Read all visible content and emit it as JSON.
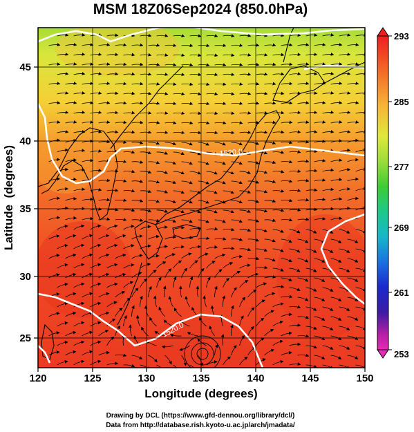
{
  "title": "MSM 18Z06Sep2024 (850.0hPa)",
  "x_axis": {
    "label": "Longitude (degrees)",
    "ticks": [
      "120",
      "125",
      "130",
      "135",
      "140",
      "145",
      "150"
    ]
  },
  "y_axis": {
    "label": "Latitude  (degrees)",
    "ticks": [
      "25",
      "30",
      "35",
      "40",
      "45"
    ]
  },
  "colorbar": {
    "min": 253,
    "max": 293,
    "ticks": [
      "293",
      "285",
      "277",
      "269",
      "261",
      "253"
    ],
    "colors": [
      "#ee1f23",
      "#f27027",
      "#f7b338",
      "#e0e83c",
      "#9bdd3a",
      "#3ecb35",
      "#1fc88a",
      "#18b6c9",
      "#1a72e0",
      "#1b2acb",
      "#3b1ca3",
      "#b41ea5",
      "#e62bb4"
    ]
  },
  "contour_labels": [
    "1520.0",
    "1520.0"
  ],
  "credits": [
    "Drawing by DCL (https://www.gfd-dennou.org/library/dcl/)",
    "Data from http://database.rish.kyoto-u.ac.jp/arch/jmadata/"
  ],
  "map_region": {
    "lon_range": [
      120,
      150
    ],
    "lat_range": [
      22.5,
      47.8
    ]
  }
}
